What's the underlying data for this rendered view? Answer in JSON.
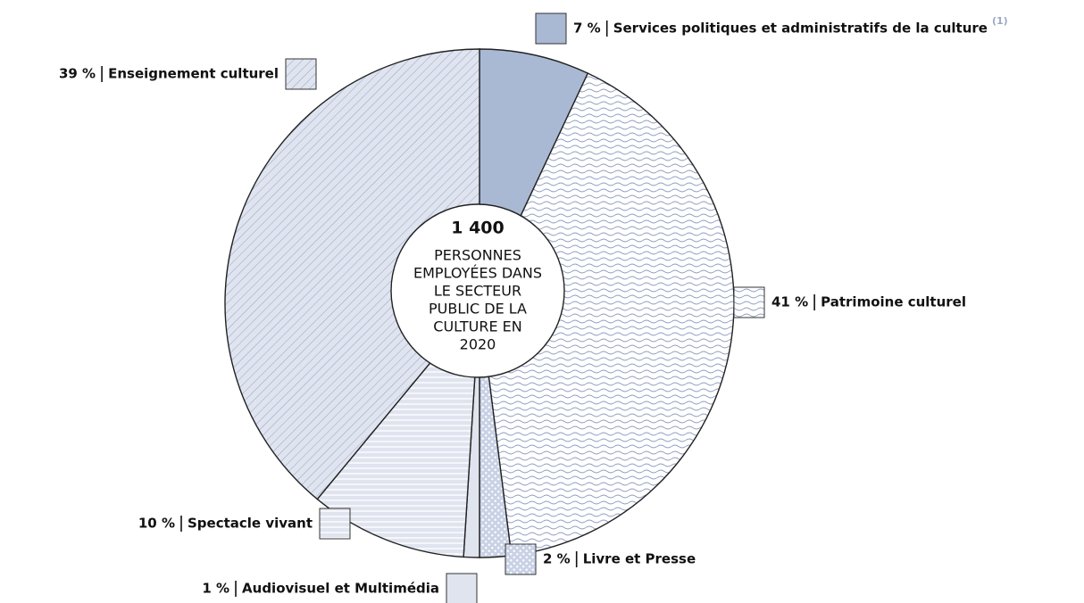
{
  "chart_data": {
    "type": "pie",
    "categories": [
      "Services politiques et administratifs de la culture",
      "Patrimoine culturel",
      "Livre et Presse",
      "Audiovisuel et Multimédia",
      "Spectacle vivant",
      "Enseignement culturel"
    ],
    "values": [
      7,
      41,
      2,
      1,
      10,
      39
    ],
    "value_labels": [
      "7 %",
      "41 %",
      "2 %",
      "1 %",
      "10 %",
      "39 %"
    ],
    "colors": [
      "#a9b9d4",
      "#ffffff",
      "#dfe4ef",
      "#dfe4ef",
      "#dfe4ef",
      "#dfe4ef"
    ],
    "patterns": [
      "solid",
      "wave",
      "dots",
      "solid",
      "horizontal",
      "diagonal"
    ],
    "footnote_marker": "(1)",
    "center_title": "1 400",
    "center_text": [
      "PERSONNES",
      "EMPLOYÉES DANS",
      "LE SECTEUR",
      "PUBLIC DE LA",
      "CULTURE EN",
      "2020"
    ]
  }
}
